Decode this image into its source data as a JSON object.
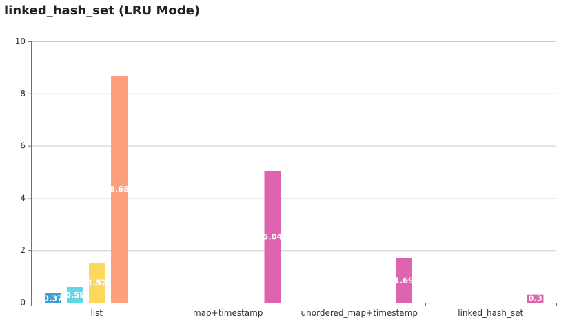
{
  "chart_data": {
    "type": "bar",
    "title": "linked_hash_set (LRU Mode)",
    "xlabel": "",
    "ylabel": "",
    "ylim": [
      0,
      10
    ],
    "yticks": [
      0,
      2,
      4,
      6,
      8,
      10
    ],
    "grid": true,
    "legend": "none",
    "categories": [
      "list",
      "map+timestamp",
      "unordered_map+timestamp",
      "linked_hash_set"
    ],
    "series": [
      {
        "color": "#3a9fd6",
        "values": [
          0.37,
          null,
          null,
          null
        ]
      },
      {
        "color": "#63d6e3",
        "values": [
          0.59,
          null,
          null,
          null
        ]
      },
      {
        "color": "#fcd95c",
        "values": [
          1.52,
          null,
          null,
          null
        ]
      },
      {
        "color": "#fea07e",
        "values": [
          8.68,
          null,
          null,
          null
        ]
      },
      {
        "color": "#df64b0",
        "values": [
          null,
          5.04,
          1.69,
          0.3
        ]
      }
    ]
  }
}
